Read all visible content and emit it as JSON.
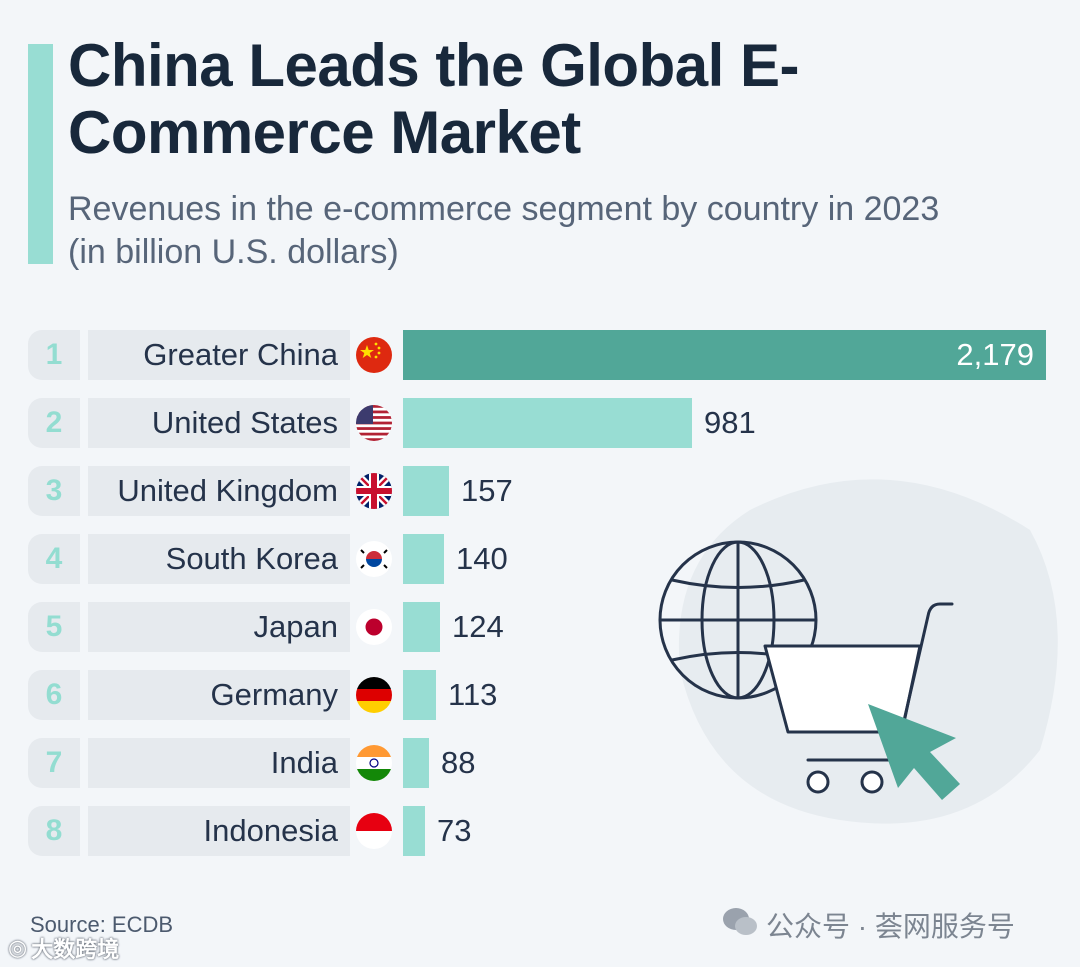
{
  "title": "China Leads the Global E-Commerce Market",
  "subtitle": "Revenues in the e-commerce segment by country in 2023 (in billion U.S. dollars)",
  "source": "Source: ECDB",
  "watermark_left": "大数跨境",
  "watermark_right": "公众号 · 荟网服务号",
  "colors": {
    "top_bar": "#51a798",
    "bar": "#98ddd3",
    "title": "#18283b"
  },
  "chart_data": {
    "type": "bar",
    "orientation": "horizontal",
    "title": "China Leads the Global E-Commerce Market",
    "subtitle": "Revenues in the e-commerce segment by country in 2023 (in billion U.S. dollars)",
    "categories": [
      "Greater China",
      "United States",
      "United Kingdom",
      "South Korea",
      "Japan",
      "Germany",
      "India",
      "Indonesia"
    ],
    "ranks": [
      "1",
      "2",
      "3",
      "4",
      "5",
      "6",
      "7",
      "8"
    ],
    "values": [
      2179,
      981,
      157,
      140,
      124,
      113,
      88,
      73
    ],
    "value_labels": [
      "2,179",
      "981",
      "157",
      "140",
      "124",
      "113",
      "88",
      "73"
    ],
    "flags": [
      "china-flag-icon",
      "usa-flag-icon",
      "uk-flag-icon",
      "south-korea-flag-icon",
      "japan-flag-icon",
      "germany-flag-icon",
      "india-flag-icon",
      "indonesia-flag-icon"
    ],
    "xlim": [
      0,
      2179
    ],
    "grid": false,
    "legend": "none"
  }
}
